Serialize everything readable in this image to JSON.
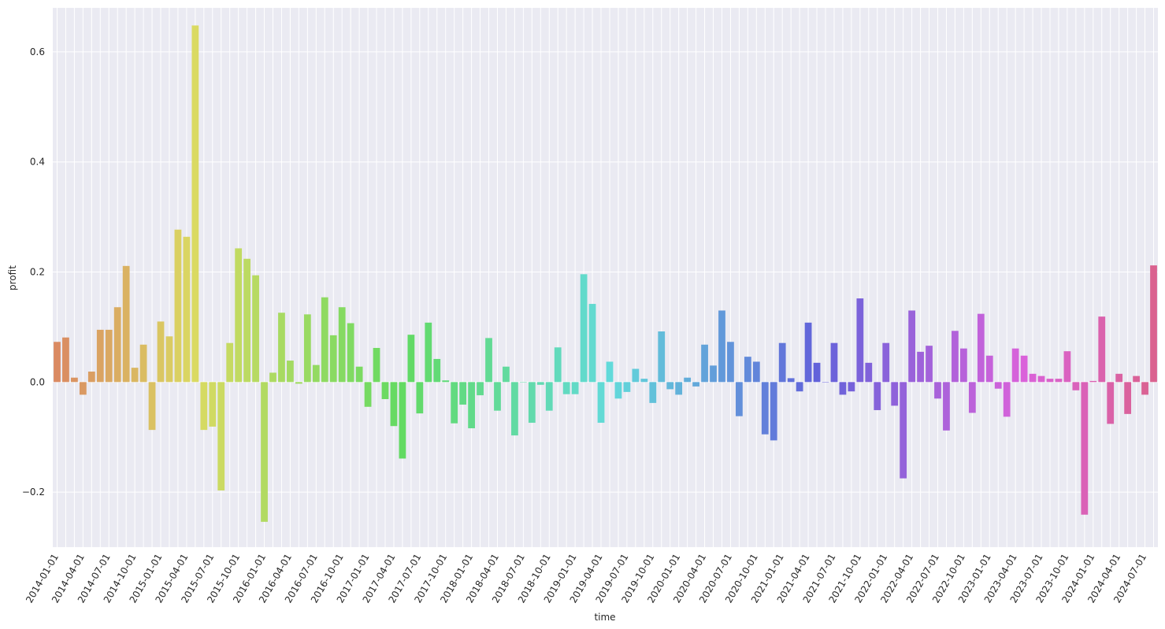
{
  "chart_data": {
    "type": "bar",
    "xlabel": "time",
    "ylabel": "profit",
    "ylim": [
      -0.3,
      0.68
    ],
    "yticks": [
      -0.2,
      0.0,
      0.2,
      0.4,
      0.6
    ],
    "ytick_labels": [
      "−0.2",
      "0.0",
      "0.2",
      "0.4",
      "0.6"
    ],
    "grid": true,
    "background": "#eaeaf2",
    "x": [
      "2014-01-01",
      "2014-02-01",
      "2014-03-01",
      "2014-04-01",
      "2014-05-01",
      "2014-06-01",
      "2014-07-01",
      "2014-08-01",
      "2014-09-01",
      "2014-10-01",
      "2014-11-01",
      "2014-12-01",
      "2015-01-01",
      "2015-02-01",
      "2015-03-01",
      "2015-04-01",
      "2015-05-01",
      "2015-06-01",
      "2015-07-01",
      "2015-08-01",
      "2015-09-01",
      "2015-10-01",
      "2015-11-01",
      "2015-12-01",
      "2016-01-01",
      "2016-02-01",
      "2016-03-01",
      "2016-04-01",
      "2016-05-01",
      "2016-06-01",
      "2016-07-01",
      "2016-08-01",
      "2016-09-01",
      "2016-10-01",
      "2016-11-01",
      "2016-12-01",
      "2017-01-01",
      "2017-02-01",
      "2017-03-01",
      "2017-04-01",
      "2017-05-01",
      "2017-06-01",
      "2017-07-01",
      "2017-08-01",
      "2017-09-01",
      "2017-10-01",
      "2017-11-01",
      "2017-12-01",
      "2018-01-01",
      "2018-02-01",
      "2018-03-01",
      "2018-04-01",
      "2018-05-01",
      "2018-06-01",
      "2018-07-01",
      "2018-08-01",
      "2018-09-01",
      "2018-10-01",
      "2018-11-01",
      "2018-12-01",
      "2019-01-01",
      "2019-02-01",
      "2019-03-01",
      "2019-04-01",
      "2019-05-01",
      "2019-06-01",
      "2019-07-01",
      "2019-08-01",
      "2019-09-01",
      "2019-10-01",
      "2019-11-01",
      "2019-12-01",
      "2020-01-01",
      "2020-02-01",
      "2020-03-01",
      "2020-04-01",
      "2020-05-01",
      "2020-06-01",
      "2020-07-01",
      "2020-08-01",
      "2020-09-01",
      "2020-10-01",
      "2020-11-01",
      "2020-12-01",
      "2021-01-01",
      "2021-02-01",
      "2021-03-01",
      "2021-04-01",
      "2021-05-01",
      "2021-06-01",
      "2021-07-01",
      "2021-08-01",
      "2021-09-01",
      "2021-10-01",
      "2021-11-01",
      "2021-12-01",
      "2022-01-01",
      "2022-02-01",
      "2022-03-01",
      "2022-04-01",
      "2022-05-01",
      "2022-06-01",
      "2022-07-01",
      "2022-08-01",
      "2022-09-01",
      "2022-10-01",
      "2022-11-01",
      "2022-12-01",
      "2023-01-01",
      "2023-02-01",
      "2023-03-01",
      "2023-04-01",
      "2023-05-01",
      "2023-06-01",
      "2023-07-01",
      "2023-08-01",
      "2023-09-01",
      "2023-10-01",
      "2023-11-01",
      "2023-12-01",
      "2024-01-01",
      "2024-02-01",
      "2024-03-01",
      "2024-04-01",
      "2024-05-01",
      "2024-06-01",
      "2024-07-01",
      "2024-08-01"
    ],
    "x_tick_every": 3,
    "values": [
      0.073,
      0.081,
      0.008,
      -0.023,
      0.019,
      0.095,
      0.095,
      0.136,
      0.211,
      0.026,
      0.068,
      -0.087,
      0.11,
      0.083,
      0.277,
      0.264,
      0.648,
      -0.087,
      -0.081,
      -0.197,
      0.071,
      0.243,
      0.224,
      0.194,
      -0.254,
      0.017,
      0.126,
      0.039,
      -0.003,
      0.123,
      0.031,
      0.154,
      0.085,
      0.136,
      0.107,
      0.028,
      -0.045,
      0.062,
      -0.031,
      -0.08,
      -0.139,
      0.086,
      -0.057,
      0.108,
      0.042,
      0.003,
      -0.075,
      -0.041,
      -0.084,
      -0.024,
      0.08,
      -0.052,
      0.028,
      -0.097,
      0.0,
      -0.074,
      -0.005,
      -0.052,
      0.063,
      -0.022,
      -0.022,
      0.196,
      0.142,
      -0.074,
      0.037,
      -0.03,
      -0.018,
      0.024,
      0.006,
      -0.038,
      0.092,
      -0.013,
      -0.023,
      0.008,
      -0.008,
      0.068,
      0.03,
      0.13,
      0.073,
      -0.062,
      0.046,
      0.037,
      -0.095,
      -0.106,
      0.071,
      0.007,
      -0.017,
      0.108,
      0.035,
      0.0,
      0.071,
      -0.023,
      -0.017,
      0.152,
      0.035,
      -0.051,
      0.071,
      -0.043,
      -0.175,
      0.13,
      0.055,
      0.066,
      -0.03,
      -0.088,
      0.093,
      0.061,
      -0.056,
      0.124,
      0.048,
      -0.012,
      -0.063,
      0.061,
      0.048,
      0.015,
      0.011,
      0.006,
      0.006,
      0.056,
      -0.015,
      -0.241,
      0.002,
      0.119,
      -0.076,
      0.015,
      -0.058,
      0.011,
      -0.023,
      0.212
    ]
  }
}
